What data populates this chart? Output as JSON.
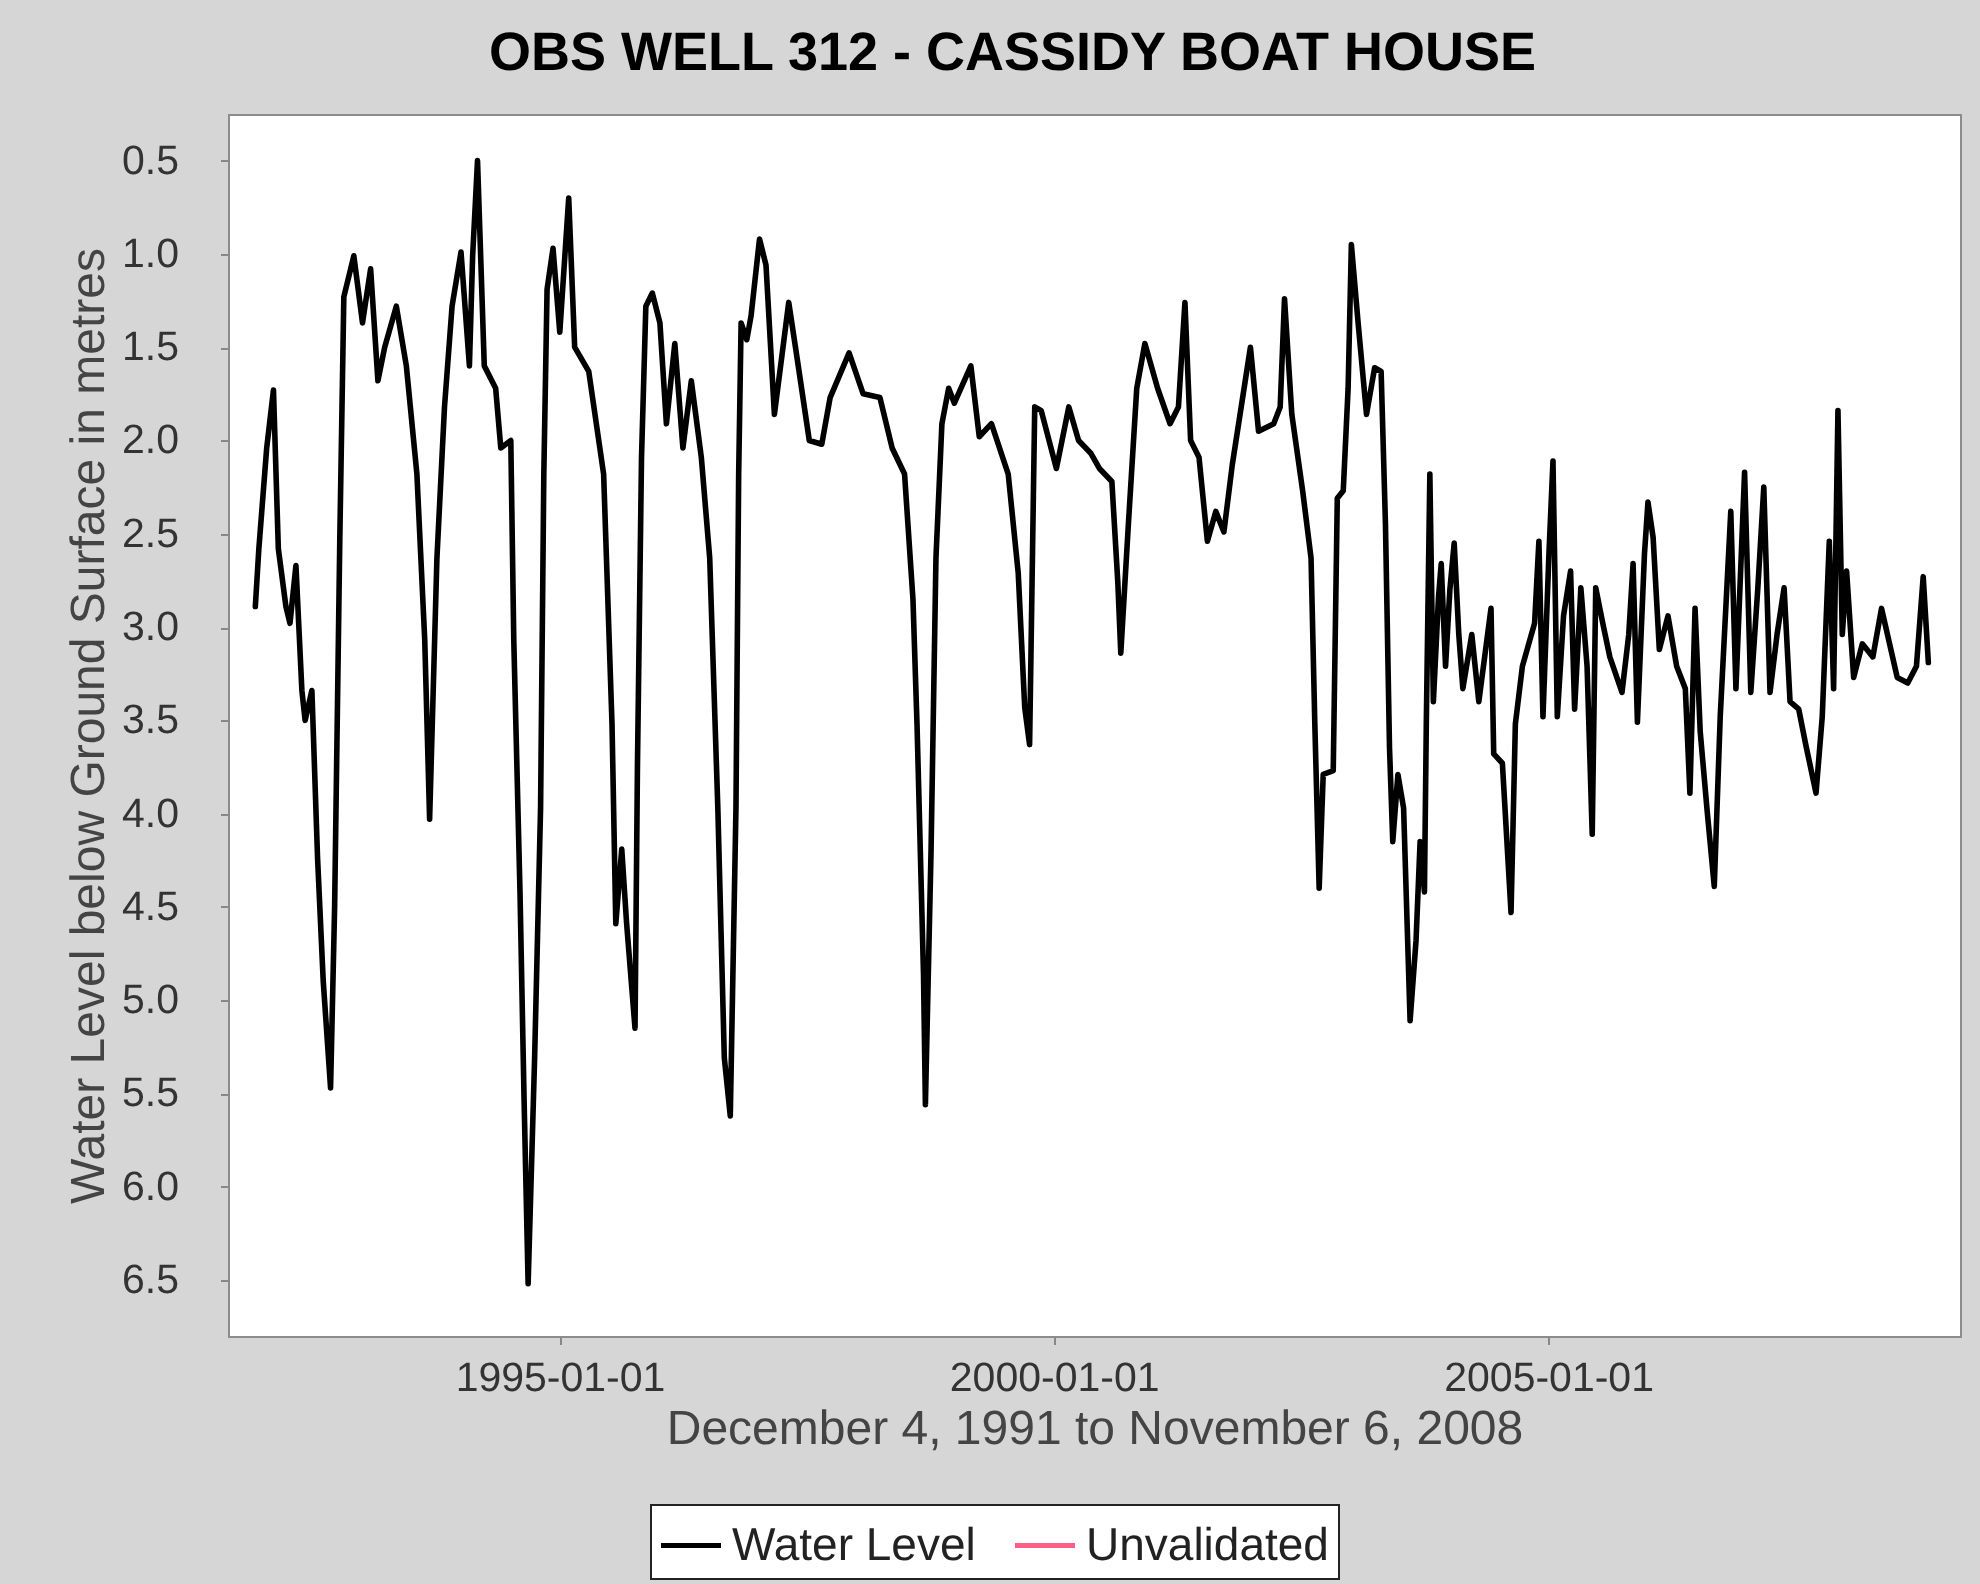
{
  "chart_data": {
    "type": "line",
    "title": "OBS WELL 312 - CASSIDY BOAT HOUSE",
    "xlabel": "December 4, 1991 to November 6, 2008",
    "ylabel": "Water Level below Ground Surface in metres",
    "x": [
      "1991-12-04",
      "1991-12-17",
      "1992-01-15",
      "1992-02-09",
      "1992-02-27",
      "1992-03-26",
      "1992-04-10",
      "1992-05-02",
      "1992-05-24",
      "1992-06-05",
      "1992-06-30",
      "1992-07-21",
      "1992-08-11",
      "1992-09-07",
      "1992-09-22",
      "1992-10-02",
      "1992-10-11",
      "1992-10-26",
      "1992-12-02",
      "1993-01-03",
      "1993-02-02",
      "1993-03-01",
      "1993-03-26",
      "1993-05-08",
      "1993-06-14",
      "1993-07-23",
      "1993-08-21",
      "1993-09-08",
      "1993-10-05",
      "1993-11-02",
      "1993-11-30",
      "1994-01-02",
      "1994-02-02",
      "1994-02-14",
      "1994-03-04",
      "1994-03-29",
      "1994-05-10",
      "1994-05-29",
      "1994-07-05",
      "1994-07-16",
      "1994-08-08",
      "1994-08-23",
      "1994-09-07",
      "1994-10-01",
      "1994-10-23",
      "1994-11-04",
      "1994-11-16",
      "1994-12-08",
      "1995-01-02",
      "1995-02-04",
      "1995-02-26",
      "1995-04-19",
      "1995-06-13",
      "1995-07-14",
      "1995-07-28",
      "1995-08-19",
      "1995-09-06",
      "1995-10-07",
      "1995-10-16",
      "1995-10-31",
      "1995-11-16",
      "1995-12-10",
      "1996-01-07",
      "1996-01-31",
      "1996-03-02",
      "1996-04-01",
      "1996-05-02",
      "1996-06-08",
      "1996-07-09",
      "1996-08-08",
      "1996-09-01",
      "1996-09-23",
      "1996-10-14",
      "1996-10-24",
      "1996-11-02",
      "1996-11-23",
      "1996-12-09",
      "1997-01-09",
      "1997-02-02",
      "1997-03-05",
      "1997-04-27",
      "1997-05-27",
      "1997-07-12",
      "1997-08-27",
      "1997-09-27",
      "1997-12-06",
      "1998-01-27",
      "1998-03-30",
      "1998-05-14",
      "1998-06-29",
      "1998-07-30",
      "1998-08-14",
      "1998-09-07",
      "1998-09-14",
      "1998-10-05",
      "1998-10-23",
      "1998-11-14",
      "1998-12-09",
      "1998-12-30",
      "1999-03-01",
      "1999-04-01",
      "1999-05-16",
      "1999-07-17",
      "1999-08-23",
      "1999-09-16",
      "1999-10-04",
      "1999-10-23",
      "1999-11-16",
      "2000-01-11",
      "2000-02-26",
      "2000-04-02",
      "2000-05-18",
      "2000-06-18",
      "2000-08-03",
      "2000-08-25",
      "2000-09-05",
      "2000-10-03",
      "2000-11-03",
      "2000-12-03",
      "2001-01-19",
      "2001-03-06",
      "2001-04-06",
      "2001-04-30",
      "2001-05-21",
      "2001-06-21",
      "2001-07-22",
      "2001-08-22",
      "2001-09-21",
      "2001-10-22",
      "2001-12-28",
      "2002-01-27",
      "2002-03-24",
      "2002-04-17",
      "2002-05-03",
      "2002-05-30",
      "2002-07-09",
      "2002-08-09",
      "2002-08-23",
      "2002-09-08",
      "2002-09-23",
      "2002-10-30",
      "2002-11-14",
      "2002-12-06",
      "2002-12-24",
      "2003-01-05",
      "2003-01-30",
      "2003-03-02",
      "2003-04-01",
      "2003-04-25",
      "2003-05-11",
      "2003-05-26",
      "2003-06-07",
      "2003-06-26",
      "2003-07-17",
      "2003-08-10",
      "2003-09-01",
      "2003-09-16",
      "2003-10-02",
      "2003-10-09",
      "2003-10-22",
      "2003-11-04",
      "2003-11-23",
      "2003-12-03",
      "2003-12-19",
      "2004-01-04",
      "2004-01-20",
      "2004-02-06",
      "2004-02-21",
      "2004-03-25",
      "2004-04-20",
      "2004-06-04",
      "2004-06-14",
      "2004-07-16",
      "2004-08-17",
      "2004-09-02",
      "2004-09-28",
      "2004-11-12",
      "2004-11-28",
      "2004-12-13",
      "2005-01-04",
      "2005-01-19",
      "2005-02-04",
      "2005-02-27",
      "2005-03-25",
      "2005-04-09",
      "2005-05-02",
      "2005-05-25",
      "2005-06-13",
      "2005-06-26",
      "2005-07-22",
      "2005-08-17",
      "2005-10-01",
      "2005-10-26",
      "2005-11-11",
      "2005-11-27",
      "2005-12-23",
      "2006-01-05",
      "2006-01-24",
      "2006-02-16",
      "2006-03-20",
      "2006-04-21",
      "2006-05-23",
      "2006-06-09",
      "2006-06-28",
      "2006-07-17",
      "2006-08-12",
      "2006-09-07",
      "2006-09-29",
      "2006-11-07",
      "2006-11-26",
      "2006-12-28",
      "2007-01-20",
      "2007-02-15",
      "2007-03-09",
      "2007-04-01",
      "2007-04-27",
      "2007-05-23",
      "2007-06-14",
      "2007-07-16",
      "2007-08-11",
      "2007-09-18",
      "2007-10-11",
      "2007-11-06",
      "2007-11-22",
      "2007-12-08",
      "2007-12-24",
      "2008-01-09",
      "2008-02-04",
      "2008-03-07",
      "2008-04-15",
      "2008-05-17",
      "2008-07-14",
      "2008-08-22",
      "2008-09-23",
      "2008-10-18",
      "2008-11-06"
    ],
    "series": [
      {
        "name": "Water Level",
        "color": "#000000",
        "values": [
          2.89,
          2.58,
          2.04,
          1.73,
          2.58,
          2.89,
          2.98,
          2.67,
          3.34,
          3.5,
          3.34,
          4.24,
          4.9,
          5.47,
          4.5,
          3.47,
          2.54,
          1.23,
          1.01,
          1.37,
          1.08,
          1.68,
          1.5,
          1.28,
          1.6,
          2.18,
          3.07,
          4.03,
          2.63,
          1.82,
          1.28,
          0.99,
          1.6,
          1.01,
          0.5,
          1.6,
          1.72,
          2.04,
          2.0,
          3.07,
          4.42,
          5.53,
          6.52,
          5.31,
          3.97,
          2.18,
          1.19,
          0.97,
          1.42,
          0.7,
          1.5,
          1.63,
          2.18,
          3.52,
          4.59,
          4.19,
          4.59,
          5.15,
          3.74,
          2.09,
          1.28,
          1.21,
          1.37,
          1.91,
          1.48,
          2.04,
          1.68,
          2.09,
          2.63,
          3.97,
          5.31,
          5.62,
          3.97,
          2.18,
          1.37,
          1.46,
          1.33,
          0.92,
          1.06,
          1.86,
          1.26,
          1.55,
          2.0,
          2.02,
          1.77,
          1.53,
          1.75,
          1.77,
          2.04,
          2.18,
          2.85,
          3.52,
          4.86,
          5.56,
          4.19,
          2.63,
          1.91,
          1.72,
          1.8,
          1.6,
          1.98,
          1.91,
          2.18,
          2.71,
          3.43,
          3.63,
          1.82,
          1.84,
          2.15,
          1.82,
          2.0,
          2.07,
          2.15,
          2.22,
          2.76,
          3.14,
          2.45,
          1.72,
          1.48,
          1.72,
          1.91,
          1.82,
          1.26,
          2.0,
          2.09,
          2.54,
          2.38,
          2.49,
          2.13,
          1.5,
          1.95,
          1.91,
          1.82,
          1.24,
          1.86,
          2.27,
          2.63,
          3.52,
          4.4,
          3.79,
          3.77,
          2.31,
          2.27,
          1.72,
          0.95,
          1.37,
          1.86,
          1.61,
          1.63,
          2.45,
          3.65,
          4.15,
          3.79,
          3.97,
          5.11,
          4.68,
          4.15,
          4.42,
          3.51,
          2.18,
          3.4,
          2.84,
          2.66,
          3.21,
          2.8,
          2.55,
          3.04,
          3.33,
          3.04,
          3.4,
          2.9,
          3.68,
          3.73,
          4.53,
          3.52,
          3.21,
          2.98,
          2.54,
          3.48,
          2.61,
          2.11,
          3.48,
          2.94,
          2.7,
          3.44,
          2.79,
          3.21,
          4.11,
          2.79,
          2.98,
          3.16,
          3.35,
          3.04,
          2.66,
          3.51,
          2.61,
          2.33,
          2.52,
          3.12,
          2.94,
          3.21,
          3.33,
          3.89,
          2.9,
          3.56,
          3.99,
          4.39,
          3.48,
          2.38,
          3.33,
          2.17,
          3.35,
          2.79,
          2.25,
          3.35,
          3.04,
          2.79,
          3.4,
          3.44,
          3.63,
          3.89,
          3.48,
          2.54,
          3.33,
          1.84,
          3.04,
          2.7,
          3.27,
          3.09,
          3.16,
          2.9,
          3.27,
          3.3,
          3.21,
          2.73,
          3.19
        ]
      },
      {
        "name": "Unvalidated",
        "color": "#ff5c8a",
        "values": [
          null,
          null,
          null,
          null,
          null,
          null,
          null,
          null,
          null,
          null,
          null,
          null,
          null,
          null,
          null,
          null,
          null,
          null,
          null,
          null,
          null,
          null,
          null,
          null,
          null,
          null,
          null,
          null,
          null,
          null,
          null,
          null,
          null,
          null,
          null,
          null,
          null,
          null,
          null,
          null,
          null,
          null,
          null,
          null,
          null,
          null,
          null,
          null,
          null,
          null,
          null,
          null,
          null,
          null,
          null,
          null,
          null,
          null,
          null,
          null,
          null,
          null,
          null,
          null,
          null,
          null,
          null,
          null,
          null,
          null,
          null,
          null,
          null,
          null,
          null,
          null,
          null,
          null,
          null,
          null,
          null,
          null,
          null,
          null,
          null,
          null,
          null,
          null,
          null,
          null,
          null,
          null,
          null,
          null,
          null,
          null,
          null,
          null,
          null,
          null,
          null,
          null,
          null,
          null,
          null,
          null,
          null,
          null,
          null,
          null,
          null,
          null,
          null,
          null,
          null,
          null,
          null,
          null,
          null,
          null,
          null,
          null,
          null,
          null,
          null,
          null,
          null,
          null,
          null,
          null,
          null,
          null,
          null,
          null,
          null,
          null,
          null,
          null,
          null,
          null,
          null,
          null,
          null,
          null,
          null,
          null,
          null,
          null,
          null,
          null,
          null,
          null,
          null,
          null,
          null,
          null,
          null,
          null,
          null,
          null,
          null,
          null,
          null,
          null,
          null,
          null,
          null,
          null,
          null,
          null,
          null,
          null,
          null,
          null,
          null,
          null,
          null,
          null,
          null,
          null,
          null,
          null,
          null,
          null,
          null,
          null,
          null,
          null,
          null,
          null,
          null,
          null,
          null,
          null,
          null,
          null,
          null,
          null,
          null,
          null,
          null,
          null,
          null,
          null,
          null,
          null,
          null,
          null,
          null,
          null,
          null,
          null,
          null,
          null,
          null,
          null,
          null,
          null,
          null,
          null,
          null,
          null,
          null,
          null,
          null,
          null,
          null,
          null,
          null,
          null,
          null,
          null,
          null,
          null,
          null,
          null
        ]
      }
    ],
    "xlim": [
      "1991-08-25",
      "2009-03-03"
    ],
    "xticks": [
      "1995-01-01",
      "2000-01-01",
      "2005-01-01"
    ],
    "ylim": [
      6.8,
      0.25
    ],
    "yticks": [
      0.5,
      {
        "value": 1,
        "label": "1.0"
      },
      1.5,
      {
        "value": 2,
        "label": "2.0"
      },
      2.5,
      {
        "value": 3,
        "label": "3.0"
      },
      3.5,
      {
        "value": 4,
        "label": "4.0"
      },
      4.5,
      {
        "value": 5,
        "label": "5.0"
      },
      5.5,
      {
        "value": 6,
        "label": "6.0"
      },
      6.5
    ],
    "legend": "bottom",
    "line_style": "solid"
  }
}
